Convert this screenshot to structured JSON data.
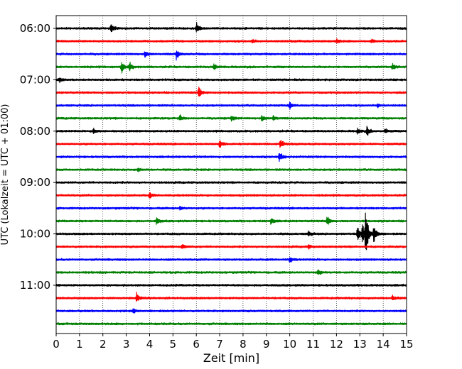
{
  "chart_data": {
    "type": "line",
    "subtype": "helicorder",
    "xlabel": "Zeit  [min]",
    "ylabel": "UTC (Lokalzeit = UTC + 01:00)",
    "xlim": [
      0,
      15
    ],
    "x_ticks": [
      0,
      1,
      2,
      3,
      4,
      5,
      6,
      7,
      8,
      9,
      10,
      11,
      12,
      13,
      14,
      15
    ],
    "x_grid": "vertical dotted",
    "trace_minutes": 15,
    "trace_colors": [
      "#000000",
      "#ff0000",
      "#0000ff",
      "#008000"
    ],
    "y_tick_labels": [
      "06:00",
      "07:00",
      "08:00",
      "09:00",
      "10:00",
      "11:00"
    ],
    "y_tick_rows": [
      0,
      4,
      8,
      12,
      16,
      20
    ],
    "rows": [
      {
        "start": "06:00",
        "events": [
          {
            "t": 2.35,
            "amp": 0.85
          },
          {
            "t": 6.0,
            "amp": 0.8
          }
        ]
      },
      {
        "start": "06:15",
        "events": [
          {
            "t": 8.4,
            "amp": 0.35
          },
          {
            "t": 12.0,
            "amp": 0.35
          },
          {
            "t": 13.5,
            "amp": 0.3
          }
        ]
      },
      {
        "start": "06:30",
        "events": [
          {
            "t": 3.8,
            "amp": 0.55
          },
          {
            "t": 5.15,
            "amp": 0.9
          }
        ]
      },
      {
        "start": "06:45",
        "events": [
          {
            "t": 2.8,
            "amp": 1.0
          },
          {
            "t": 3.15,
            "amp": 0.75
          },
          {
            "t": 6.75,
            "amp": 0.6
          },
          {
            "t": 14.4,
            "amp": 0.45
          }
        ]
      },
      {
        "start": "07:00",
        "events": [
          {
            "t": 0.15,
            "amp": 0.45
          }
        ]
      },
      {
        "start": "07:15",
        "events": [
          {
            "t": 6.1,
            "amp": 0.9
          }
        ]
      },
      {
        "start": "07:30",
        "events": [
          {
            "t": 10.0,
            "amp": 0.6
          },
          {
            "t": 13.75,
            "amp": 0.35
          }
        ]
      },
      {
        "start": "07:45",
        "events": [
          {
            "t": 5.3,
            "amp": 0.5
          },
          {
            "t": 7.5,
            "amp": 0.45
          },
          {
            "t": 8.8,
            "amp": 0.5
          },
          {
            "t": 9.3,
            "amp": 0.45
          }
        ]
      },
      {
        "start": "08:00",
        "events": [
          {
            "t": 1.6,
            "amp": 0.55
          },
          {
            "t": 12.9,
            "amp": 0.4
          },
          {
            "t": 13.3,
            "amp": 0.7
          },
          {
            "t": 14.1,
            "amp": 0.4
          }
        ]
      },
      {
        "start": "08:15",
        "events": [
          {
            "t": 7.0,
            "amp": 0.7
          },
          {
            "t": 9.6,
            "amp": 0.75
          }
        ]
      },
      {
        "start": "08:30",
        "events": [
          {
            "t": 9.55,
            "amp": 0.8
          }
        ]
      },
      {
        "start": "08:45",
        "events": [
          {
            "t": 3.5,
            "amp": 0.3
          }
        ]
      },
      {
        "start": "09:00",
        "events": []
      },
      {
        "start": "09:15",
        "events": [
          {
            "t": 4.0,
            "amp": 0.45
          }
        ]
      },
      {
        "start": "09:30",
        "events": [
          {
            "t": 5.3,
            "amp": 0.3
          }
        ]
      },
      {
        "start": "09:45",
        "events": [
          {
            "t": 4.3,
            "amp": 0.55
          },
          {
            "t": 9.2,
            "amp": 0.55
          },
          {
            "t": 11.6,
            "amp": 0.85
          }
        ]
      },
      {
        "start": "10:00",
        "events": [
          {
            "t": 10.8,
            "amp": 0.5
          },
          {
            "t": 12.9,
            "amp": 1.2
          },
          {
            "t": 13.1,
            "amp": 1.6
          },
          {
            "t": 13.25,
            "amp": 3.8
          },
          {
            "t": 13.6,
            "amp": 1.6
          }
        ]
      },
      {
        "start": "10:15",
        "events": [
          {
            "t": 5.4,
            "amp": 0.45
          },
          {
            "t": 10.8,
            "amp": 0.3
          }
        ]
      },
      {
        "start": "10:30",
        "events": [
          {
            "t": 10.0,
            "amp": 0.5
          }
        ]
      },
      {
        "start": "10:45",
        "events": [
          {
            "t": 11.2,
            "amp": 0.45
          }
        ]
      },
      {
        "start": "11:00",
        "events": []
      },
      {
        "start": "11:15",
        "events": [
          {
            "t": 3.45,
            "amp": 0.85
          },
          {
            "t": 14.4,
            "amp": 0.5
          }
        ]
      },
      {
        "start": "11:30",
        "events": [
          {
            "t": 3.3,
            "amp": 0.3
          }
        ]
      },
      {
        "start": "11:45",
        "events": []
      }
    ]
  }
}
